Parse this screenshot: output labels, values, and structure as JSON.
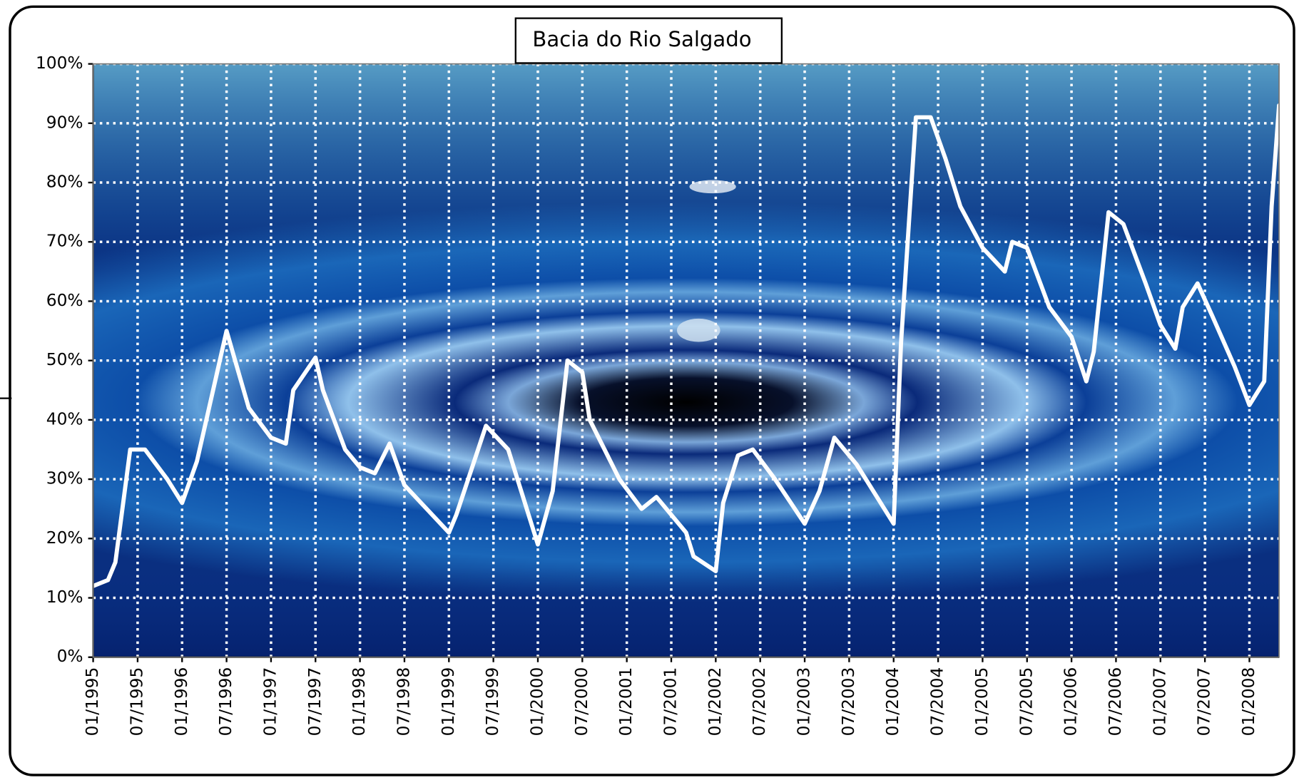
{
  "chart_data": {
    "type": "line",
    "title": "Bacia do Rio Salgado",
    "x": [
      "01/1995",
      "03/1995",
      "04/1995",
      "06/1995",
      "08/1995",
      "11/1995",
      "01/1996",
      "03/1996",
      "07/1996",
      "10/1996",
      "01/1997",
      "03/1997",
      "04/1997",
      "07/1997",
      "08/1997",
      "11/1997",
      "01/1998",
      "03/1998",
      "05/1998",
      "07/1998",
      "01/1999",
      "02/1999",
      "06/1999",
      "09/1999",
      "01/2000",
      "03/2000",
      "05/2000",
      "07/2000",
      "08/2000",
      "12/2000",
      "03/2001",
      "05/2001",
      "09/2001",
      "10/2001",
      "01/2002",
      "02/2002",
      "04/2002",
      "06/2002",
      "09/2002",
      "01/2003",
      "03/2003",
      "05/2003",
      "08/2003",
      "01/2004",
      "02/2004",
      "04/2004",
      "06/2004",
      "08/2004",
      "10/2004",
      "01/2005",
      "04/2005",
      "05/2005",
      "07/2005",
      "10/2005",
      "01/2006",
      "03/2006",
      "04/2006",
      "06/2006",
      "08/2006",
      "11/2006",
      "01/2007",
      "03/2007",
      "04/2007",
      "06/2007",
      "08/2007",
      "11/2007",
      "01/2008",
      "03/2008",
      "04/2008",
      "05/2008"
    ],
    "series": [
      {
        "color": "#ffffff",
        "values": [
          12,
          13,
          16,
          35,
          35,
          30,
          26,
          33,
          55,
          42,
          37,
          36,
          45,
          50.5,
          45,
          35,
          32,
          31,
          36,
          29,
          21,
          24,
          39,
          35,
          19,
          28,
          50,
          48,
          40,
          30,
          25,
          27,
          21,
          17,
          14.5,
          26,
          34,
          35,
          30,
          22.5,
          28,
          37,
          32.5,
          22.5,
          53,
          91,
          91,
          84,
          76,
          69,
          65,
          70,
          69,
          59,
          54,
          46.5,
          51.5,
          75,
          73,
          63,
          56,
          52,
          59,
          63,
          57.5,
          49,
          42.5,
          46.5,
          76,
          93
        ]
      }
    ],
    "xlim": [
      "01/1995",
      "05/2008"
    ],
    "xticks": [
      "01/1995",
      "07/1995",
      "01/1996",
      "07/1996",
      "01/1997",
      "07/1997",
      "01/1998",
      "07/1998",
      "01/1999",
      "07/1999",
      "01/2000",
      "07/2000",
      "01/2001",
      "07/2001",
      "01/2002",
      "07/2002",
      "01/2003",
      "07/2003",
      "01/2004",
      "07/2004",
      "01/2005",
      "07/2005",
      "01/2006",
      "07/2006",
      "01/2007",
      "07/2007",
      "01/2008"
    ],
    "ylim": [
      0,
      100
    ],
    "yticks": [
      {
        "value": 0,
        "label": "0%"
      },
      {
        "value": 10,
        "label": "10%"
      },
      {
        "value": 20,
        "label": "20%"
      },
      {
        "value": 30,
        "label": "30%"
      },
      {
        "value": 40,
        "label": "40%"
      },
      {
        "value": 50,
        "label": "50%"
      },
      {
        "value": 60,
        "label": "60%"
      },
      {
        "value": 70,
        "label": "70%"
      },
      {
        "value": 80,
        "label": "80%"
      },
      {
        "value": 90,
        "label": "90%"
      },
      {
        "value": 100,
        "label": "100%"
      }
    ],
    "grid": true
  }
}
